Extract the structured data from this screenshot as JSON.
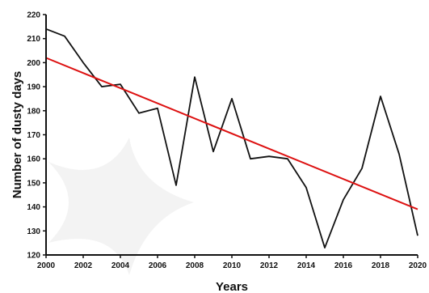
{
  "chart_data": {
    "type": "line",
    "title": "",
    "xlabel": "Years",
    "ylabel": "Number of dusty days",
    "xlim": [
      2000,
      2020
    ],
    "ylim": [
      120,
      220
    ],
    "x_ticks": [
      2000,
      2002,
      2004,
      2006,
      2008,
      2010,
      2012,
      2014,
      2016,
      2018,
      2020
    ],
    "y_ticks": [
      120,
      130,
      140,
      150,
      160,
      170,
      180,
      190,
      200,
      210,
      220
    ],
    "grid": false,
    "legend": "none",
    "series": [
      {
        "color": "#111111",
        "x": [
          2000,
          2001,
          2002,
          2003,
          2004,
          2005,
          2006,
          2007,
          2008,
          2009,
          2010,
          2011,
          2012,
          2013,
          2014,
          2015,
          2016,
          2017,
          2018,
          2019,
          2020
        ],
        "values": [
          214,
          211,
          200,
          190,
          191,
          179,
          181,
          149,
          194,
          163,
          185,
          160,
          161,
          160,
          148,
          123,
          143,
          156,
          186,
          162,
          128
        ]
      },
      {
        "color": "#dd1111",
        "type": "trend",
        "x": [
          2000,
          2020
        ],
        "values": [
          202,
          139
        ]
      }
    ]
  }
}
